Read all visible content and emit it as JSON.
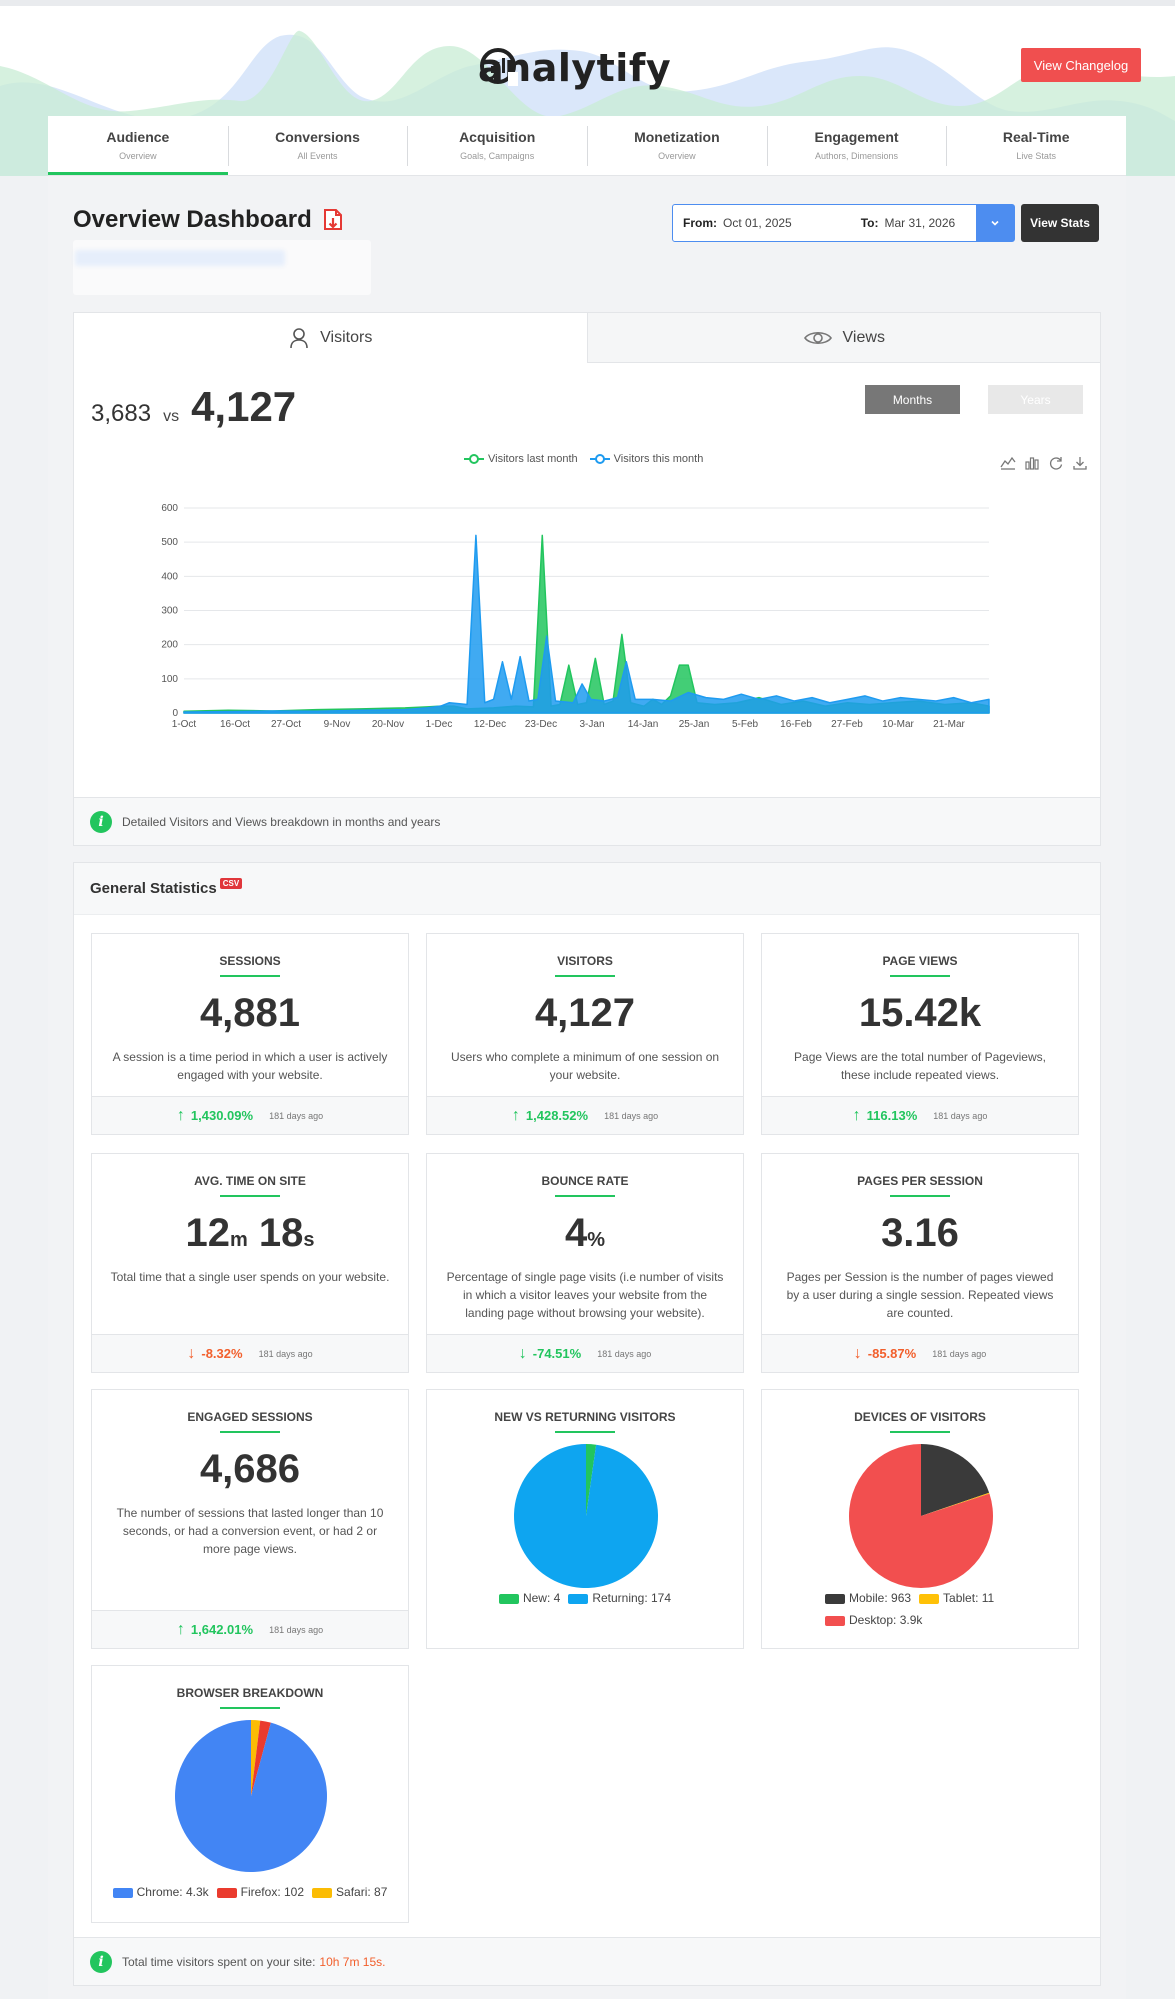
{
  "header": {
    "logo_text": "analytify",
    "changelog_label": "View Changelog"
  },
  "tabs": [
    {
      "label": "Audience",
      "sub": "Overview"
    },
    {
      "label": "Conversions",
      "sub": "All Events"
    },
    {
      "label": "Acquisition",
      "sub": "Goals, Campaigns"
    },
    {
      "label": "Monetization",
      "sub": "Overview"
    },
    {
      "label": "Engagement",
      "sub": "Authors, Dimensions"
    },
    {
      "label": "Real-Time",
      "sub": "Live Stats"
    }
  ],
  "dashboard": {
    "title": "Overview Dashboard",
    "from_label": "From:",
    "from_value": "Oct 01, 2025",
    "to_label": "To:",
    "to_value": "Mar 31, 2026",
    "view_stats_label": "View Stats"
  },
  "overview": {
    "tab_visitors": "Visitors",
    "tab_views": "Views",
    "value_last": "3,683",
    "vs": "vs",
    "value_current": "4,127",
    "months_label": "Months",
    "years_label": "Years",
    "legend_last": "Visitors last month",
    "legend_this": "Visitors this month",
    "info_text": "Detailed Visitors and Views breakdown in months and years"
  },
  "chart_data": {
    "type": "area",
    "title": "",
    "xlabel": "",
    "ylabel": "",
    "ylim": [
      0,
      600
    ],
    "yticks": [
      0,
      100,
      200,
      300,
      400,
      500,
      600
    ],
    "x_tick_labels": [
      "1-Oct",
      "16-Oct",
      "27-Oct",
      "9-Nov",
      "20-Nov",
      "1-Dec",
      "12-Dec",
      "23-Dec",
      "3-Jan",
      "14-Jan",
      "25-Jan",
      "5-Feb",
      "16-Feb",
      "27-Feb",
      "10-Mar",
      "21-Mar"
    ],
    "colors": {
      "last": "#22c55e",
      "this": "#1e9bf0"
    },
    "series": [
      {
        "name": "Visitors last month",
        "points": [
          [
            0,
            5
          ],
          [
            10,
            8
          ],
          [
            20,
            6
          ],
          [
            30,
            10
          ],
          [
            40,
            12
          ],
          [
            50,
            15
          ],
          [
            55,
            18
          ],
          [
            58,
            20
          ],
          [
            61,
            20
          ],
          [
            64,
            12
          ],
          [
            70,
            15
          ],
          [
            75,
            20
          ],
          [
            79,
            18
          ],
          [
            81,
            520
          ],
          [
            83,
            20
          ],
          [
            85,
            25
          ],
          [
            87,
            140
          ],
          [
            89,
            25
          ],
          [
            91,
            30
          ],
          [
            93,
            160
          ],
          [
            95,
            25
          ],
          [
            97,
            35
          ],
          [
            99,
            230
          ],
          [
            101,
            30
          ],
          [
            104,
            20
          ],
          [
            106,
            40
          ],
          [
            108,
            25
          ],
          [
            110,
            50
          ],
          [
            112,
            140
          ],
          [
            114,
            140
          ],
          [
            116,
            30
          ],
          [
            120,
            25
          ],
          [
            125,
            30
          ],
          [
            130,
            45
          ],
          [
            135,
            25
          ],
          [
            140,
            35
          ],
          [
            145,
            20
          ],
          [
            150,
            30
          ],
          [
            155,
            25
          ],
          [
            160,
            30
          ],
          [
            166,
            35
          ],
          [
            172,
            25
          ],
          [
            178,
            30
          ],
          [
            182,
            20
          ]
        ]
      },
      {
        "name": "Visitors this month",
        "points": [
          [
            0,
            3
          ],
          [
            10,
            4
          ],
          [
            20,
            6
          ],
          [
            30,
            5
          ],
          [
            40,
            8
          ],
          [
            50,
            10
          ],
          [
            55,
            15
          ],
          [
            58,
            20
          ],
          [
            60,
            30
          ],
          [
            64,
            25
          ],
          [
            66,
            520
          ],
          [
            68,
            30
          ],
          [
            70,
            40
          ],
          [
            72,
            150
          ],
          [
            74,
            40
          ],
          [
            76,
            165
          ],
          [
            78,
            35
          ],
          [
            80,
            40
          ],
          [
            82,
            225
          ],
          [
            84,
            35
          ],
          [
            88,
            30
          ],
          [
            90,
            85
          ],
          [
            92,
            40
          ],
          [
            95,
            35
          ],
          [
            98,
            45
          ],
          [
            100,
            150
          ],
          [
            102,
            40
          ],
          [
            106,
            40
          ],
          [
            110,
            35
          ],
          [
            114,
            60
          ],
          [
            118,
            45
          ],
          [
            122,
            40
          ],
          [
            126,
            55
          ],
          [
            130,
            40
          ],
          [
            134,
            50
          ],
          [
            138,
            35
          ],
          [
            142,
            45
          ],
          [
            146,
            30
          ],
          [
            150,
            40
          ],
          [
            154,
            50
          ],
          [
            158,
            35
          ],
          [
            162,
            45
          ],
          [
            166,
            40
          ],
          [
            170,
            35
          ],
          [
            174,
            45
          ],
          [
            178,
            30
          ],
          [
            182,
            40
          ]
        ]
      }
    ]
  },
  "general": {
    "title": "General Statistics",
    "csv_label": "CSV",
    "foot_text": "Total time visitors spent on your site:",
    "foot_value": "10h 7m 15s."
  },
  "stats": {
    "sessions": {
      "title": "SESSIONS",
      "value": "4,881",
      "desc": "A session is a time period in which a user is actively engaged with your website.",
      "delta": "1,430.09%",
      "ago": "181 days ago"
    },
    "visitors": {
      "title": "VISITORS",
      "value": "4,127",
      "desc": "Users who complete a minimum of one session on your website.",
      "delta": "1,428.52%",
      "ago": "181 days ago"
    },
    "pageviews": {
      "title": "PAGE VIEWS",
      "value": "15.42k",
      "desc": "Page Views are the total number of Pageviews, these include repeated views.",
      "delta": "116.13%",
      "ago": "181 days ago"
    },
    "avg_time": {
      "title": "AVG. TIME ON SITE",
      "minutes": "12",
      "m_unit": "m",
      "seconds": "18",
      "s_unit": "s",
      "desc": "Total time that a single user spends on your website.",
      "delta": "-8.32%",
      "ago": "181 days ago"
    },
    "bounce": {
      "title": "BOUNCE RATE",
      "value": "4",
      "unit": "%",
      "desc": "Percentage of single page visits (i.e number of visits in which a visitor leaves your website from the landing page without browsing your website).",
      "delta": "-74.51%",
      "ago": "181 days ago"
    },
    "pps": {
      "title": "PAGES PER SESSION",
      "value": "3.16",
      "desc": "Pages per Session is the number of pages viewed by a user during a single session. Repeated views are counted.",
      "delta": "-85.87%",
      "ago": "181 days ago"
    },
    "engaged": {
      "title": "ENGAGED SESSIONS",
      "value": "4,686",
      "desc": "The number of sessions that lasted longer than 10 seconds, or had a conversion event, or had 2 or more page views.",
      "delta": "1,642.01%",
      "ago": "181 days ago"
    },
    "new_vs_returning": {
      "title": "NEW VS RETURNING VISITORS",
      "legend": [
        {
          "label": "New: 4",
          "color": "#22c55e",
          "value": 4
        },
        {
          "label": "Returning: 174",
          "color": "#0ea5f0",
          "value": 174
        }
      ]
    },
    "devices": {
      "title": "DEVICES OF VISITORS",
      "legend": [
        {
          "label": "Mobile: 963",
          "color": "#3a3a3a",
          "value": 963
        },
        {
          "label": "Tablet: 11",
          "color": "#ffc107",
          "value": 11
        },
        {
          "label": "Desktop: 3.9k",
          "color": "#f24f4f",
          "value": 3900
        }
      ]
    },
    "browsers": {
      "title": "BROWSER BREAKDOWN",
      "legend": [
        {
          "label": "Chrome: 4.3k",
          "color": "#4285f4",
          "value": 4300
        },
        {
          "label": "Firefox: 102",
          "color": "#ea3b2e",
          "value": 102
        },
        {
          "label": "Safari: 87",
          "color": "#fbbc04",
          "value": 87
        }
      ]
    }
  }
}
